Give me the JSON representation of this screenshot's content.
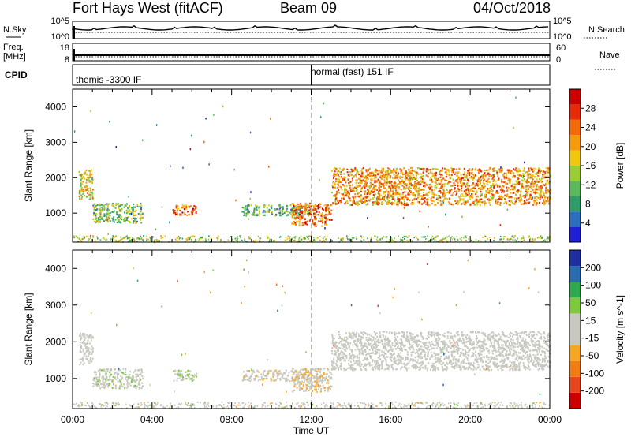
{
  "header": {
    "radar": "Fort Hays West (fitACF)",
    "beam": "Beam 09",
    "date": "04/Oct/2018"
  },
  "top_panels": {
    "nsky_label": "N.Sky",
    "nsky_ticks": [
      "10^5",
      "10^0"
    ],
    "nsearch_label": "N.Search",
    "nsearch_ticks": [
      "10^5",
      "10^0"
    ],
    "freq_label_line1": "Freq.",
    "freq_label_line2": "[MHz]",
    "freq_ticks": [
      "18",
      "8"
    ],
    "nave_label": "Nave",
    "nave_ticks": [
      "60",
      "0"
    ],
    "cpid_label": "CPID",
    "cpid_segments": [
      {
        "text": "themis -3300 IF",
        "start_hour": 0
      },
      {
        "text": "normal (fast) 151 IF",
        "start_hour": 12
      }
    ]
  },
  "colors": {
    "power_scale": [
      "#1f1fd6",
      "#2e6fbd",
      "#2f9c6a",
      "#5cb85c",
      "#9acd32",
      "#f2c80f",
      "#f59a0a",
      "#f26a0a",
      "#e62a0a",
      "#cc0000"
    ],
    "velocity_scale": [
      "#cc0000",
      "#e8461c",
      "#f07d14",
      "#f5a623",
      "#c8c8c0",
      "#c8c8c0",
      "#7dc83c",
      "#2fa84f",
      "#2b6cb0",
      "#1f2fa0"
    ]
  },
  "chart_data": [
    {
      "type": "heatmap",
      "panel": "power",
      "xlabel": "",
      "ylabel": "Slant Range [km]",
      "xlim": [
        0,
        24
      ],
      "ylim": [
        180,
        4500
      ],
      "yticks": [
        1000,
        2000,
        3000,
        4000
      ],
      "colorbar_label": "Power [dB]",
      "colorbar_ticks": [
        "28",
        "24",
        "20",
        "16",
        "12",
        "8",
        "4"
      ],
      "colorbar_range": [
        0,
        30
      ],
      "features": [
        {
          "x_start": 0.3,
          "x_end": 1.0,
          "y_low": 1400,
          "y_high": 2250,
          "intensity": 16
        },
        {
          "x_start": 1.0,
          "x_end": 3.5,
          "y_low": 750,
          "y_high": 1300,
          "intensity": 12
        },
        {
          "x_start": 5.0,
          "x_end": 6.2,
          "y_low": 950,
          "y_high": 1250,
          "intensity": 22
        },
        {
          "x_start": 8.5,
          "x_end": 12.0,
          "y_low": 950,
          "y_high": 1250,
          "intensity": 10
        },
        {
          "x_start": 11.0,
          "x_end": 13.0,
          "y_low": 650,
          "y_high": 1300,
          "intensity": 22
        },
        {
          "x_start": 13.0,
          "x_end": 24.0,
          "y_low": 1250,
          "y_high": 2300,
          "intensity": 20
        }
      ]
    },
    {
      "type": "heatmap",
      "panel": "velocity",
      "xlabel": "Time UT",
      "ylabel": "Slant Range [km]",
      "xlim": [
        0,
        24
      ],
      "ylim": [
        180,
        4500
      ],
      "yticks": [
        1000,
        2000,
        3000,
        4000
      ],
      "xticks": [
        "00:00",
        "04:00",
        "08:00",
        "12:00",
        "16:00",
        "20:00",
        "00:00"
      ],
      "colorbar_label": "Velocity [m s^-1]",
      "colorbar_ticks": [
        "200",
        "100",
        "50",
        "15",
        "-15",
        "-50",
        "-100",
        "-200"
      ],
      "colorbar_range": [
        -250,
        250
      ],
      "features": [
        {
          "x_start": 0.3,
          "x_end": 1.0,
          "y_low": 1400,
          "y_high": 2250,
          "velocity": 0
        },
        {
          "x_start": 1.0,
          "x_end": 3.5,
          "y_low": 750,
          "y_high": 1300,
          "velocity": 30
        },
        {
          "x_start": 5.0,
          "x_end": 6.2,
          "y_low": 950,
          "y_high": 1250,
          "velocity": 40
        },
        {
          "x_start": 8.5,
          "x_end": 12.0,
          "y_low": 950,
          "y_high": 1250,
          "velocity": -30
        },
        {
          "x_start": 11.0,
          "x_end": 13.0,
          "y_low": 650,
          "y_high": 1300,
          "velocity": -40
        },
        {
          "x_start": 13.0,
          "x_end": 24.0,
          "y_low": 1250,
          "y_high": 2300,
          "velocity": 0
        }
      ]
    }
  ]
}
